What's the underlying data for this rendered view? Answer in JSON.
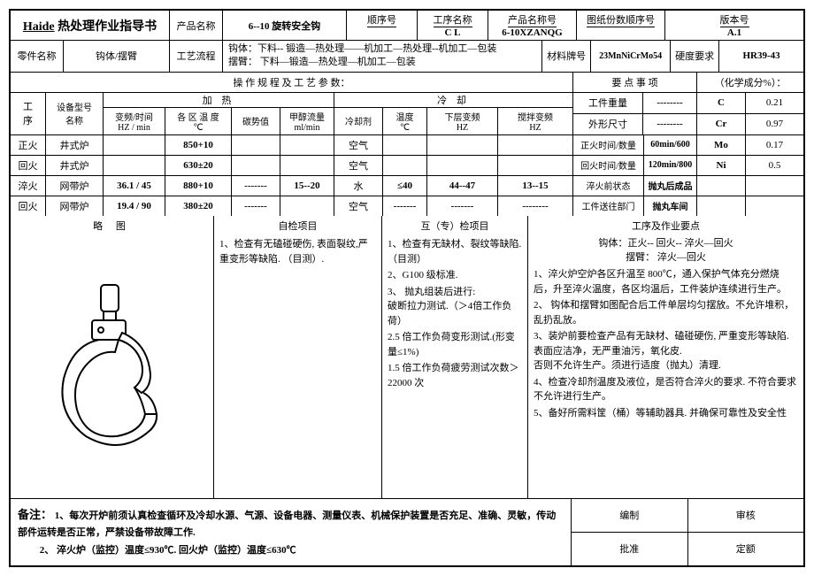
{
  "header": {
    "title_brand": "Haide",
    "title_rest": " 热处理作业指导书",
    "product_name_lbl": "产品名称",
    "product_name": "6--10    旋转安全钩",
    "seq_lbl": "顺序号",
    "seq": "",
    "proc_name_lbl": "工序名称",
    "proc_name": "C L",
    "prod_code_lbl": "产品名称号",
    "prod_code": "6-10XZANQG",
    "drawing_lbl": "图纸份数顺序号",
    "drawing": "",
    "version_lbl": "版本号",
    "version": "A.1",
    "part_lbl": "零件名称",
    "part": "钩体/摆臂",
    "flow_lbl": "工艺流程",
    "flow_line1": "钩体：下料--  锻造—热处理——机加工—热处理--机加工—包装",
    "flow_line2": "摆臂：    下料—锻造—热处理—机加工—包装",
    "material_lbl": "材料牌号",
    "material": "23MnNiCrMo54",
    "hardness_lbl": "硬度要求",
    "hardness": "HR39-43"
  },
  "bar": {
    "left": "操 作 规 程 及 工 艺 参 数：",
    "right_a": "要 点 事 项",
    "right_b": "（化学成分%）："
  },
  "cols": {
    "proc": "工\n序",
    "equip": "设备型号\n名称",
    "heat": "加        热",
    "cool": "冷   却",
    "freq": "变频/时间\nHZ / min",
    "zone": "各 区 温 度\n℃",
    "carbon": "碳势值",
    "meth": "甲醇流量\nml/min",
    "coolant": "冷却剂",
    "temp": "温度\n℃",
    "lowf": "下层变频\nHZ",
    "stirf": "搅拌变频\nHZ",
    "weight_lbl": "工件重量",
    "weight": "--------",
    "size_lbl": "外形尺寸",
    "size": "--------",
    "c_lbl": "C",
    "c": "0.21",
    "cr_lbl": "Cr",
    "cr": "0.97"
  },
  "rows": [
    {
      "p": "正火",
      "e": "井式炉",
      "f": "",
      "z": "850+10",
      "c": "",
      "m": "",
      "cl": "空气",
      "t": "",
      "lf": "",
      "sf": "",
      "rl": "正火时间/数量",
      "rv": "60min/600",
      "el": "Mo",
      "ev": "0.17"
    },
    {
      "p": "回火",
      "e": "井式炉",
      "f": "",
      "z": "630±20",
      "c": "",
      "m": "",
      "cl": "空气",
      "t": "",
      "lf": "",
      "sf": "",
      "rl": "回火时间/数量",
      "rv": "120min/800",
      "el": "Ni",
      "ev": "0.5"
    },
    {
      "p": "淬火",
      "e": "网带炉",
      "f": "36.1 / 45",
      "z": "880+10",
      "c": "-------",
      "m": "15--20",
      "cl": "水",
      "t": "≤40",
      "lf": "44--47",
      "sf": "13--15",
      "rl": "淬火前状态",
      "rv": "抛丸后成品",
      "el": "",
      "ev": ""
    },
    {
      "p": "回火",
      "e": "网带炉",
      "f": "19.4 / 90",
      "z": "380±20",
      "c": "-------",
      "m": "",
      "cl": "空气",
      "t": "-------",
      "lf": "-------",
      "sf": "--------",
      "rl": "工件送往部门",
      "rv": "抛丸车间",
      "el": "",
      "ev": ""
    }
  ],
  "mid": {
    "fig_title": "略        图",
    "self_title": "自检项目",
    "mutual_title": "互（专）检项目",
    "points_title": "工序及作业要点",
    "self_items": [
      "1、检查有无磕碰硬伤, 表面裂纹,严重变形等缺陷.  （目测）."
    ],
    "mutual_items": [
      "1、检查有无缺材、裂纹等缺陷.（目测）",
      "2、G100 级标准.",
      "3、 抛丸组装后进行:\n破断拉力测试.（＞4倍工作负荷）",
      "",
      "2.5 倍工作负荷变形测试.(形变量≤1%)",
      "",
      "1.5 倍工作负荷疲劳测试次数＞22000 次"
    ],
    "points_head": [
      "钩体：正火--   回火--    淬火—回火",
      "摆臂：             淬火—回火"
    ],
    "points_items": [
      "1、淬火炉空炉各区升温至 800℃，通入保护气体充分燃烧后，升至淬火温度，各区均温后，工件装炉连续进行生产。",
      "2、  钩体和摆臂如图配合后工件单层均匀摆放。不允许堆积，乱扔乱放。",
      "3、装炉前要检查产品有无缺材、磕碰硬伤, 严重变形等缺陷. 表面应洁净，无严重油污，氧化皮.\n否则不允许生产。须进行适度（抛丸）清理.",
      "4、检查冷却剂温度及液位，是否符合淬火的要求. 不符合要求不允许进行生产。",
      "5、备好所需料筐（桶）等辅助器具. 并确保可靠性及安全性"
    ]
  },
  "notes": {
    "lead": "备注：",
    "n1": "1、每次开炉前须认真检查循环及冷却水源、气源、设备电器、测量仪表、机械保护装置是否充足、准确、灵敏，传动部件运转是否正常，严禁设备带故障工作.",
    "n2": "2、 淬火炉（监控）温度≤930℃. 回火炉（监控）温度≤630℃",
    "edit": "编制",
    "review": "审核",
    "approve": "批准",
    "quota": "定额"
  },
  "style": {
    "border": "#000000",
    "bg": "#ffffff"
  }
}
